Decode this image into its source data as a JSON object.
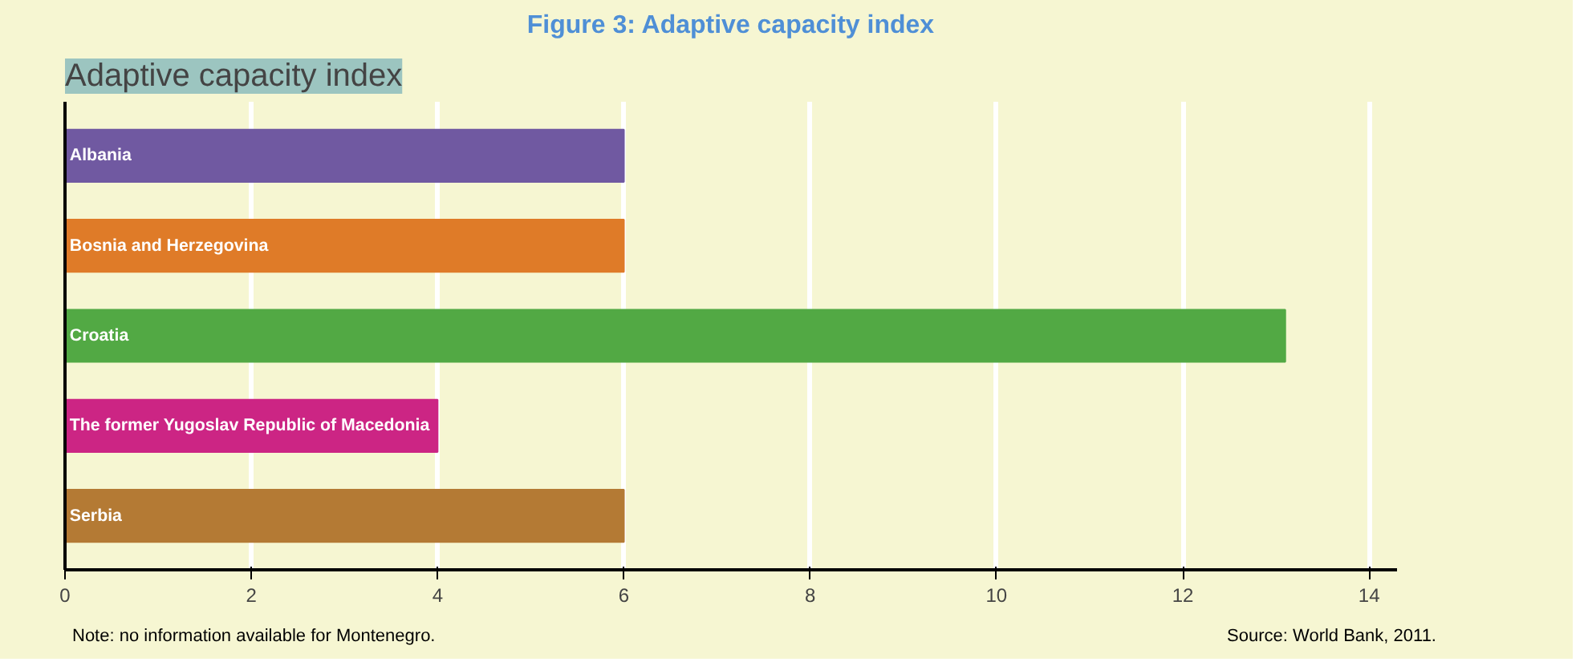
{
  "chart_data": {
    "type": "bar",
    "orientation": "horizontal",
    "title": "Figure 3: Adaptive capacity index",
    "subtitle": "Adaptive capacity index",
    "categories": [
      "Albania",
      "Bosnia and Herzegovina",
      "Croatia",
      "The former Yugoslav Republic of Macedonia",
      "Serbia"
    ],
    "values": [
      6,
      6,
      13.1,
      4,
      6
    ],
    "colors": [
      "#7059a1",
      "#df7b28",
      "#52a944",
      "#cc2584",
      "#b47a34"
    ],
    "xlim": [
      0,
      14.3
    ],
    "xticks": [
      0,
      2,
      4,
      6,
      8,
      10,
      12,
      14
    ],
    "grid": "x",
    "tick_labels": "x",
    "annotations": [
      "Note: no information available for Montenegro.",
      "Source: World Bank, 2011."
    ]
  }
}
